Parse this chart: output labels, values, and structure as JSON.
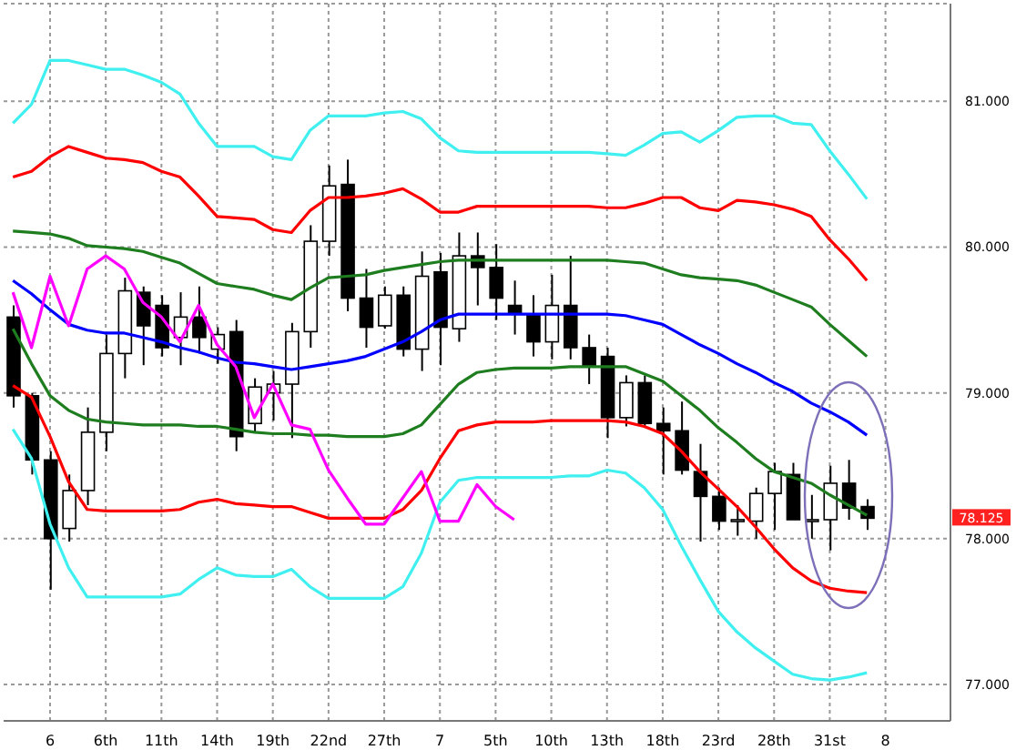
{
  "chart_data": {
    "type": "candlestick",
    "categories": [
      null,
      null,
      "6",
      null,
      null,
      "6th",
      null,
      null,
      "11th",
      null,
      null,
      "14th",
      null,
      null,
      "19th",
      null,
      null,
      "22nd",
      null,
      null,
      "27th",
      null,
      null,
      "7",
      null,
      null,
      "5th",
      null,
      null,
      "10th",
      null,
      null,
      "13th",
      null,
      null,
      "18th",
      null,
      null,
      "23rd",
      null,
      null,
      "28th",
      null,
      null,
      "31st",
      null,
      null,
      "8",
      null,
      null,
      null
    ],
    "ohlc": [
      [
        79.52,
        79.6,
        78.9,
        78.98
      ],
      [
        78.98,
        79.0,
        78.44,
        78.54
      ],
      [
        78.54,
        78.6,
        77.65,
        78.0
      ],
      [
        78.07,
        78.44,
        77.98,
        78.33
      ],
      [
        78.33,
        78.9,
        78.23,
        78.73
      ],
      [
        78.73,
        79.4,
        78.6,
        79.27
      ],
      [
        79.27,
        79.79,
        79.1,
        79.7
      ],
      [
        79.69,
        79.73,
        79.19,
        79.46
      ],
      [
        79.6,
        79.67,
        79.25,
        79.31
      ],
      [
        79.38,
        79.69,
        79.19,
        79.52
      ],
      [
        79.52,
        79.73,
        79.27,
        79.38
      ],
      [
        79.3,
        79.45,
        79.2,
        79.4
      ],
      [
        79.42,
        79.5,
        78.6,
        78.7
      ],
      [
        78.79,
        79.1,
        78.73,
        79.04
      ],
      [
        79.0,
        79.15,
        78.81,
        79.06
      ],
      [
        79.06,
        79.48,
        78.69,
        79.42
      ],
      [
        79.42,
        80.15,
        79.31,
        80.04
      ],
      [
        80.04,
        80.56,
        79.94,
        80.42
      ],
      [
        80.43,
        80.6,
        79.56,
        79.65
      ],
      [
        79.65,
        79.85,
        79.31,
        79.45
      ],
      [
        79.46,
        79.73,
        79.44,
        79.67
      ],
      [
        79.67,
        79.73,
        79.25,
        79.3
      ],
      [
        79.3,
        79.97,
        79.15,
        79.8
      ],
      [
        79.83,
        79.96,
        79.19,
        79.45
      ],
      [
        79.44,
        80.1,
        79.35,
        79.94
      ],
      [
        79.94,
        80.1,
        79.6,
        79.86
      ],
      [
        79.86,
        80.02,
        79.5,
        79.65
      ],
      [
        79.6,
        79.77,
        79.4,
        79.54
      ],
      [
        79.54,
        79.67,
        79.25,
        79.35
      ],
      [
        79.35,
        79.81,
        79.23,
        79.6
      ],
      [
        79.6,
        79.94,
        79.23,
        79.31
      ],
      [
        79.31,
        79.4,
        79.06,
        79.19
      ],
      [
        79.25,
        79.31,
        78.69,
        78.83
      ],
      [
        78.83,
        79.12,
        78.77,
        79.07
      ],
      [
        79.07,
        79.12,
        78.77,
        78.79
      ],
      [
        78.79,
        78.9,
        78.44,
        78.74
      ],
      [
        78.74,
        78.94,
        78.44,
        78.47
      ],
      [
        78.46,
        78.65,
        77.98,
        78.29
      ],
      [
        78.29,
        78.35,
        78.06,
        78.12
      ],
      [
        78.12,
        78.23,
        78.02,
        78.13
      ],
      [
        78.12,
        78.35,
        78.0,
        78.31
      ],
      [
        78.31,
        78.52,
        78.06,
        78.46
      ],
      [
        78.44,
        78.52,
        78.13,
        78.13
      ],
      [
        78.13,
        78.3,
        78.0,
        78.13
      ],
      [
        78.13,
        78.5,
        77.92,
        78.38
      ],
      [
        78.38,
        78.54,
        78.13,
        78.21
      ],
      [
        78.22,
        78.27,
        78.06,
        78.14
      ],
      null,
      null,
      null,
      null
    ],
    "series": [
      {
        "type": "line",
        "color": "#40f0f0",
        "values": [
          80.85,
          80.98,
          81.28,
          81.28,
          81.25,
          81.22,
          81.22,
          81.18,
          81.13,
          81.05,
          80.85,
          80.69,
          80.69,
          80.69,
          80.62,
          80.6,
          80.8,
          80.9,
          80.9,
          80.9,
          80.92,
          80.93,
          80.88,
          80.75,
          80.66,
          80.65,
          80.65,
          80.65,
          80.65,
          80.65,
          80.65,
          80.65,
          80.64,
          80.63,
          80.7,
          80.78,
          80.79,
          80.72,
          80.8,
          80.89,
          80.9,
          80.9,
          80.85,
          80.84,
          80.66,
          80.5,
          80.33,
          null,
          null,
          null,
          null
        ]
      },
      {
        "type": "line",
        "color": "#ff0000",
        "values": [
          80.48,
          80.52,
          80.62,
          80.69,
          80.65,
          80.61,
          80.6,
          80.58,
          80.52,
          80.48,
          80.35,
          80.21,
          80.2,
          80.19,
          80.12,
          80.1,
          80.25,
          80.34,
          80.34,
          80.35,
          80.37,
          80.4,
          80.33,
          80.24,
          80.24,
          80.28,
          80.28,
          80.28,
          80.28,
          80.28,
          80.28,
          80.28,
          80.27,
          80.27,
          80.3,
          80.34,
          80.34,
          80.27,
          80.25,
          80.32,
          80.31,
          80.29,
          80.26,
          80.21,
          80.05,
          79.92,
          79.77,
          null,
          null,
          null,
          null
        ]
      },
      {
        "type": "line",
        "color": "#1e7d1e",
        "values": [
          80.11,
          80.1,
          80.09,
          80.06,
          80.01,
          80.0,
          79.99,
          79.97,
          79.93,
          79.89,
          79.82,
          79.75,
          79.73,
          79.71,
          79.67,
          79.64,
          79.72,
          79.79,
          79.8,
          79.81,
          79.84,
          79.86,
          79.88,
          79.9,
          79.91,
          79.91,
          79.91,
          79.91,
          79.91,
          79.91,
          79.91,
          79.91,
          79.91,
          79.9,
          79.89,
          79.85,
          79.81,
          79.79,
          79.78,
          79.77,
          79.74,
          79.69,
          79.64,
          79.59,
          79.47,
          79.36,
          79.25,
          null,
          null,
          null,
          null
        ]
      },
      {
        "type": "line",
        "color": "#0000ff",
        "values": [
          79.77,
          79.68,
          79.57,
          79.47,
          79.43,
          79.41,
          79.41,
          79.38,
          79.35,
          79.31,
          79.28,
          79.24,
          79.21,
          79.2,
          79.18,
          79.16,
          79.18,
          79.2,
          79.22,
          79.25,
          79.3,
          79.35,
          79.42,
          79.5,
          79.54,
          79.54,
          79.54,
          79.54,
          79.54,
          79.54,
          79.54,
          79.54,
          79.54,
          79.53,
          79.5,
          79.47,
          79.4,
          79.33,
          79.27,
          79.2,
          79.14,
          79.07,
          79.01,
          78.93,
          78.87,
          78.8,
          78.71,
          null,
          null,
          null,
          null
        ]
      },
      {
        "type": "line",
        "color": "#1e7d1e",
        "values": [
          79.44,
          79.2,
          78.98,
          78.88,
          78.82,
          78.8,
          78.79,
          78.78,
          78.78,
          78.78,
          78.77,
          78.77,
          78.75,
          78.73,
          78.72,
          78.72,
          78.71,
          78.71,
          78.7,
          78.7,
          78.7,
          78.72,
          78.78,
          78.92,
          79.06,
          79.14,
          79.16,
          79.17,
          79.17,
          79.17,
          79.18,
          79.18,
          79.18,
          79.18,
          79.13,
          79.08,
          78.98,
          78.88,
          78.76,
          78.66,
          78.55,
          78.46,
          78.42,
          78.38,
          78.3,
          78.23,
          78.16,
          null,
          null,
          null,
          null
        ]
      },
      {
        "type": "line",
        "color": "#ff0000",
        "values": [
          79.05,
          78.97,
          78.7,
          78.39,
          78.2,
          78.19,
          78.19,
          78.19,
          78.19,
          78.2,
          78.25,
          78.27,
          78.24,
          78.23,
          78.22,
          78.22,
          78.18,
          78.14,
          78.14,
          78.14,
          78.14,
          78.2,
          78.33,
          78.55,
          78.74,
          78.78,
          78.8,
          78.8,
          78.8,
          78.81,
          78.81,
          78.81,
          78.81,
          78.8,
          78.77,
          78.72,
          78.6,
          78.46,
          78.34,
          78.22,
          78.08,
          77.93,
          77.8,
          77.71,
          77.66,
          77.64,
          77.63,
          null,
          null,
          null,
          null
        ]
      },
      {
        "type": "line",
        "color": "#40f0f0",
        "values": [
          78.75,
          78.55,
          78.1,
          77.8,
          77.6,
          77.6,
          77.6,
          77.6,
          77.6,
          77.62,
          77.72,
          77.8,
          77.75,
          77.74,
          77.74,
          77.79,
          77.67,
          77.59,
          77.59,
          77.59,
          77.59,
          77.67,
          77.9,
          78.25,
          78.4,
          78.42,
          78.42,
          78.42,
          78.42,
          78.42,
          78.43,
          78.43,
          78.47,
          78.45,
          78.35,
          78.2,
          77.95,
          77.72,
          77.5,
          77.36,
          77.25,
          77.16,
          77.07,
          77.04,
          77.03,
          77.05,
          77.08,
          null,
          null,
          null,
          null
        ]
      },
      {
        "type": "line",
        "color": "#ff00ff",
        "values": [
          79.69,
          79.31,
          79.8,
          79.46,
          79.85,
          79.94,
          79.85,
          79.62,
          79.52,
          79.35,
          79.6,
          79.33,
          79.18,
          78.83,
          79.06,
          78.78,
          78.75,
          78.47,
          78.28,
          78.1,
          78.1,
          78.28,
          78.46,
          78.12,
          78.12,
          78.37,
          78.22,
          78.13,
          null,
          null,
          null,
          null,
          null,
          null,
          null,
          null,
          null,
          null,
          null,
          null,
          null,
          null,
          null,
          null,
          null,
          null,
          null,
          null,
          null,
          null,
          null
        ]
      }
    ],
    "ylim": [
      76.75,
      81.67
    ],
    "yticks": [
      {
        "value": 77,
        "label": "77.000"
      },
      {
        "value": 78,
        "label": "78.000"
      },
      {
        "value": 79,
        "label": "79.000"
      },
      {
        "value": 80,
        "label": "80.000"
      },
      {
        "value": 81,
        "label": "81.000"
      }
    ],
    "annotations": [
      "78.125"
    ],
    "grid": true,
    "marker": "none",
    "line_style": "solid"
  }
}
